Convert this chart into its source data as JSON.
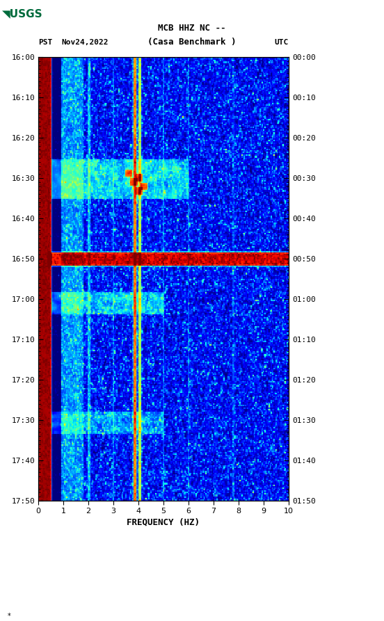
{
  "title_line1": "MCB HHZ NC --",
  "title_line2": "(Casa Benchmark )",
  "date_label": "Nov24,2022",
  "left_tz": "PST",
  "right_tz": "UTC",
  "freq_min": 0,
  "freq_max": 10,
  "xlabel": "FREQUENCY (HZ)",
  "ytick_pst": [
    "16:00",
    "16:10",
    "16:20",
    "16:30",
    "16:40",
    "16:50",
    "17:00",
    "17:10",
    "17:20",
    "17:30",
    "17:40",
    "17:50"
  ],
  "ytick_utc": [
    "00:00",
    "00:10",
    "00:20",
    "00:30",
    "00:40",
    "00:50",
    "01:00",
    "01:10",
    "01:20",
    "01:30",
    "01:40",
    "01:50"
  ],
  "fig_width": 5.52,
  "fig_height": 8.93,
  "background_color": "#ffffff",
  "right_panel_color": "#000000",
  "usgs_green": "#006b3c",
  "seed": 12345,
  "n_time": 300,
  "n_freq": 250,
  "mono_font": "monospace"
}
